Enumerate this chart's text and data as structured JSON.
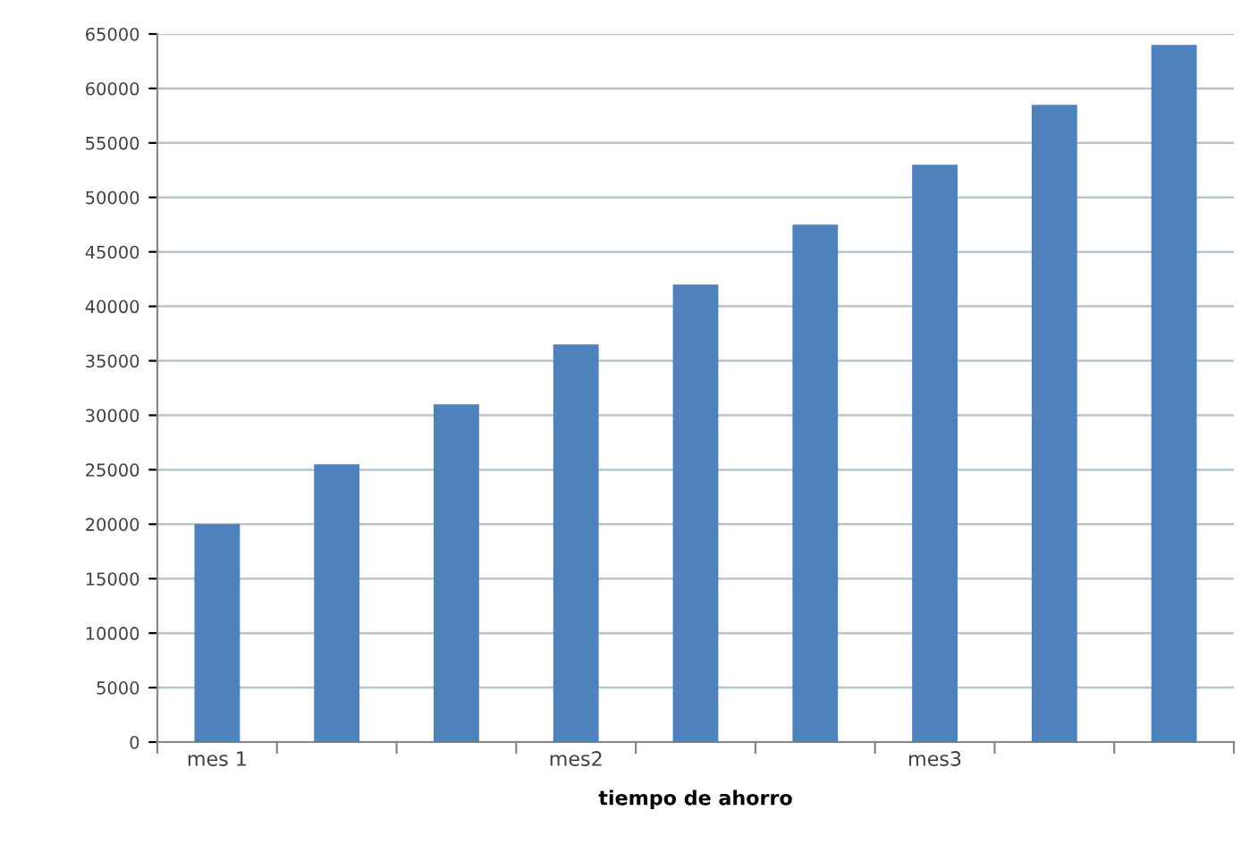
{
  "chart_data": {
    "type": "bar",
    "categories": [
      "mes 1",
      null,
      null,
      "mes2",
      null,
      null,
      "mes3",
      null,
      null
    ],
    "values": [
      20000,
      25500,
      31000,
      36500,
      42000,
      47500,
      53000,
      58500,
      64000
    ],
    "color": "#4f81bd",
    "xlabel": "tiempo de ahorro",
    "ylim": [
      0,
      65000
    ],
    "yticks": [
      0,
      5000,
      10000,
      15000,
      20000,
      25000,
      30000,
      35000,
      40000,
      45000,
      50000,
      55000,
      60000,
      65000
    ],
    "grid": "y"
  }
}
